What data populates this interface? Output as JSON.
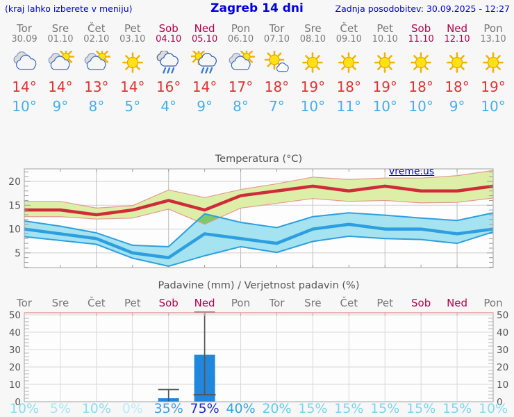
{
  "header": {
    "left_note": "(kraj lahko izberete v meniju)",
    "title": "Zagreb 14 dni",
    "updated": "Zadnja posodobitev: 30.09.2025 - 12:27"
  },
  "watermark": "vreme.us",
  "colors": {
    "header_blue": "#0000dd",
    "weekday_text": "#757575",
    "weekend_text": "#b5004d",
    "tmax_text": "#e13232",
    "tmin_text": "#45aeea",
    "temp_max_line": "#cf2b3a",
    "temp_max_band": "#ddefa6",
    "temp_max_band_edge": "#e59893",
    "temp_min_line": "#2d9fe0",
    "temp_min_band": "#a5e3f0",
    "band_overlap": "#7cc96b",
    "bar_fill": "#2187dd",
    "whisker": "#555555"
  },
  "days": [
    {
      "name": "Tor",
      "date": "30.09",
      "weekend": false,
      "icon": "cloudy",
      "tmax": "14°",
      "tmin": "10°",
      "prob": "10%",
      "prob_color": "#8ddcf0"
    },
    {
      "name": "Sre",
      "date": "01.10",
      "weekend": false,
      "icon": "partly",
      "tmax": "14°",
      "tmin": "9°",
      "prob": "5%",
      "prob_color": "#a5e6f5"
    },
    {
      "name": "Čet",
      "date": "02.10",
      "weekend": false,
      "icon": "partly",
      "tmax": "13°",
      "tmin": "8°",
      "prob": "10%",
      "prob_color": "#8ddcf0"
    },
    {
      "name": "Pet",
      "date": "03.10",
      "weekend": false,
      "icon": "sunny",
      "tmax": "14°",
      "tmin": "5°",
      "prob": "0%",
      "prob_color": "#b9ecf8"
    },
    {
      "name": "Sob",
      "date": "04.10",
      "weekend": true,
      "icon": "rain",
      "tmax": "16°",
      "tmin": "4°",
      "prob": "35%",
      "prob_color": "#3f9fdf"
    },
    {
      "name": "Ned",
      "date": "05.10",
      "weekend": true,
      "icon": "sun-rain",
      "tmax": "14°",
      "tmin": "9°",
      "prob": "75%",
      "prob_color": "#1f2ecc"
    },
    {
      "name": "Pon",
      "date": "06.10",
      "weekend": false,
      "icon": "partly",
      "tmax": "17°",
      "tmin": "8°",
      "prob": "40%",
      "prob_color": "#36a3e3"
    },
    {
      "name": "Tor",
      "date": "07.10",
      "weekend": false,
      "icon": "mostly-sunny",
      "tmax": "18°",
      "tmin": "7°",
      "prob": "20%",
      "prob_color": "#5fcdec"
    },
    {
      "name": "Sre",
      "date": "08.10",
      "weekend": false,
      "icon": "sunny",
      "tmax": "19°",
      "tmin": "10°",
      "prob": "15%",
      "prob_color": "#79d6ee"
    },
    {
      "name": "Čet",
      "date": "09.10",
      "weekend": false,
      "icon": "sunny",
      "tmax": "18°",
      "tmin": "11°",
      "prob": "15%",
      "prob_color": "#79d6ee"
    },
    {
      "name": "Pet",
      "date": "10.10",
      "weekend": false,
      "icon": "sunny",
      "tmax": "19°",
      "tmin": "10°",
      "prob": "15%",
      "prob_color": "#79d6ee"
    },
    {
      "name": "Sob",
      "date": "11.10",
      "weekend": true,
      "icon": "sunny",
      "tmax": "18°",
      "tmin": "10°",
      "prob": "15%",
      "prob_color": "#79d6ee"
    },
    {
      "name": "Ned",
      "date": "12.10",
      "weekend": true,
      "icon": "sunny",
      "tmax": "18°",
      "tmin": "9°",
      "prob": "15%",
      "prob_color": "#79d6ee"
    },
    {
      "name": "Pon",
      "date": "13.10",
      "weekend": false,
      "icon": "sunny",
      "tmax": "19°",
      "tmin": "10°",
      "prob": "10%",
      "prob_color": "#8ddcf0"
    }
  ],
  "chart_data": [
    {
      "type": "line",
      "title": "Temperatura (°C)",
      "categories": [
        "Tor 30.09",
        "Sre 01.10",
        "Čet 02.10",
        "Pet 03.10",
        "Sob 04.10",
        "Ned 05.10",
        "Pon 06.10",
        "Tor 07.10",
        "Sre 08.10",
        "Čet 09.10",
        "Pet 10.10",
        "Sob 11.10",
        "Ned 12.10",
        "Pon 13.10"
      ],
      "series": [
        {
          "name": "t_max",
          "values": [
            14,
            14,
            13,
            14,
            16,
            14,
            17,
            18,
            19,
            18,
            19,
            18,
            18,
            19
          ]
        },
        {
          "name": "t_max_range_hi",
          "values": [
            15.8,
            15.8,
            14.4,
            14.9,
            18.2,
            16.6,
            18.3,
            19.5,
            20.9,
            20.4,
            20.7,
            20.7,
            21.2,
            22.3
          ]
        },
        {
          "name": "t_max_range_lo",
          "values": [
            12.6,
            12.6,
            12.1,
            12.3,
            14.2,
            11.0,
            14.4,
            15.4,
            16.4,
            15.8,
            16.0,
            15.5,
            15.6,
            16.5
          ]
        },
        {
          "name": "t_min",
          "values": [
            10,
            9,
            8,
            5,
            4,
            9,
            8,
            7,
            10,
            11,
            10,
            10,
            9,
            10
          ]
        },
        {
          "name": "t_min_range_hi",
          "values": [
            11.7,
            10.6,
            9.2,
            6.6,
            6.3,
            13.2,
            11.4,
            10.3,
            12.6,
            13.4,
            12.9,
            12.3,
            11.8,
            13.4
          ]
        },
        {
          "name": "t_min_range_lo",
          "values": [
            8.4,
            7.6,
            6.8,
            3.9,
            2.2,
            4.4,
            6.3,
            5.1,
            7.4,
            8.5,
            8.0,
            7.8,
            7.0,
            9.4
          ]
        }
      ],
      "ylim": [
        1.9,
        22.6
      ],
      "yticks": [
        5,
        10,
        15,
        20
      ],
      "grid": true,
      "legend_position": "none"
    },
    {
      "type": "bar",
      "title": "Padavine (mm) / Verjetnost padavin (%)",
      "categories": [
        "Tor",
        "Sre",
        "Čet",
        "Pet",
        "Sob",
        "Ned",
        "Pon",
        "Tor",
        "Sre",
        "Čet",
        "Pet",
        "Sob",
        "Ned",
        "Pon"
      ],
      "bars_mm": [
        0,
        0,
        0,
        0,
        2,
        27,
        0,
        0,
        0,
        0,
        0,
        0,
        0,
        0
      ],
      "whisker_lo": [
        null,
        null,
        null,
        null,
        0,
        4,
        null,
        null,
        null,
        null,
        null,
        null,
        null,
        null
      ],
      "whisker_hi": [
        null,
        null,
        null,
        null,
        7,
        51.5,
        null,
        null,
        null,
        null,
        null,
        null,
        null,
        null
      ],
      "probabilities_pct": [
        10,
        5,
        10,
        0,
        35,
        75,
        40,
        20,
        15,
        15,
        15,
        15,
        15,
        10
      ],
      "ylim": [
        0,
        51.2
      ],
      "yticks": [
        0,
        10,
        20,
        30,
        40,
        50
      ],
      "grid": true,
      "legend_position": "none"
    }
  ]
}
